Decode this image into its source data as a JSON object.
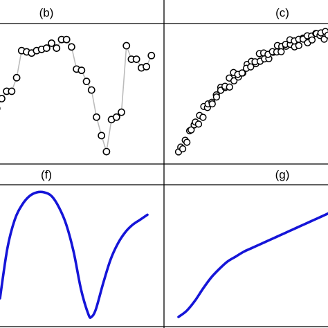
{
  "chart_data": [
    {
      "panel": "b",
      "title": "(b)",
      "type": "line",
      "markers": true,
      "marker_style": "open-circle",
      "line_color": "#bbbbbb",
      "x": [
        1,
        2,
        3,
        4,
        5,
        6,
        7,
        8,
        9,
        10,
        11,
        12,
        13,
        14,
        15,
        16,
        17,
        18,
        19,
        20,
        21,
        22,
        23,
        24,
        25,
        26,
        27,
        28,
        29,
        30,
        31,
        32
      ],
      "y": [
        0.4,
        0.48,
        0.54,
        0.54,
        0.65,
        0.87,
        0.86,
        0.85,
        0.87,
        0.88,
        0.89,
        0.93,
        0.89,
        0.96,
        0.96,
        0.9,
        0.72,
        0.71,
        0.62,
        0.55,
        0.33,
        0.18,
        0.05,
        0.31,
        0.33,
        0.37,
        0.91,
        0.8,
        0.8,
        0.73,
        0.74,
        0.83
      ],
      "xlim": [
        0,
        33
      ],
      "ylim": [
        0,
        1
      ]
    },
    {
      "panel": "c",
      "title": "(c)",
      "type": "scatter",
      "marker_style": "open-circle",
      "trend_points": 70,
      "x_range": [
        0,
        1
      ],
      "y_from": 0.05,
      "y_to": 0.96,
      "xlim": [
        0,
        1
      ],
      "ylim": [
        0,
        1
      ]
    },
    {
      "panel": "f",
      "title": "(f)",
      "type": "line",
      "color": "#1515d8",
      "x": [
        0,
        0.05,
        0.1,
        0.15,
        0.2,
        0.25,
        0.3,
        0.35,
        0.4,
        0.45,
        0.5,
        0.55,
        0.6,
        0.62,
        0.65,
        0.7,
        0.75,
        0.8,
        0.85,
        0.9,
        0.95,
        1.0
      ],
      "y": [
        0.15,
        0.55,
        0.78,
        0.9,
        0.97,
        1.0,
        1.0,
        0.97,
        0.88,
        0.74,
        0.52,
        0.22,
        0.02,
        0.0,
        0.06,
        0.27,
        0.46,
        0.59,
        0.68,
        0.74,
        0.78,
        0.82
      ],
      "xlim": [
        0,
        1
      ],
      "ylim": [
        0,
        1
      ]
    },
    {
      "panel": "g",
      "title": "(g)",
      "type": "line",
      "color": "#1515d8",
      "x": [
        0,
        0.05,
        0.1,
        0.15,
        0.2,
        0.25,
        0.3,
        0.35,
        0.4,
        0.45,
        0.5,
        0.55,
        0.6,
        0.65,
        0.7,
        0.75,
        0.8,
        0.85,
        0.9,
        0.95,
        1.0
      ],
      "y": [
        0.0,
        0.05,
        0.13,
        0.23,
        0.32,
        0.39,
        0.45,
        0.49,
        0.53,
        0.56,
        0.59,
        0.62,
        0.65,
        0.68,
        0.71,
        0.74,
        0.77,
        0.8,
        0.83,
        0.86,
        0.88
      ],
      "xlim": [
        0,
        1
      ],
      "ylim": [
        0,
        1
      ]
    }
  ]
}
